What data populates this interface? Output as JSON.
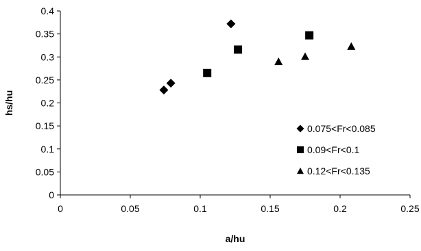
{
  "chart_data": {
    "type": "scatter",
    "title": "",
    "xlabel": "a/hu",
    "ylabel": "hs/hu",
    "xlim": [
      0,
      0.25
    ],
    "ylim": [
      0,
      0.4
    ],
    "x_ticks": [
      0,
      0.05,
      0.1,
      0.15,
      0.2,
      0.25
    ],
    "x_tick_labels": [
      "0",
      "0.05",
      "0.1",
      "0.15",
      "0.2",
      "0.25"
    ],
    "y_ticks": [
      0,
      0.05,
      0.1,
      0.15,
      0.2,
      0.25,
      0.3,
      0.35,
      0.4
    ],
    "y_tick_labels": [
      "0",
      "0.05",
      "0.1",
      "0.15",
      "0.2",
      "0.25",
      "0.3",
      "0.35",
      "0.4"
    ],
    "grid": false,
    "legend_position": "bottom-right",
    "series": [
      {
        "name": "0.075<Fr<0.085",
        "marker": "diamond",
        "color": "#000000",
        "points": [
          {
            "x": 0.074,
            "y": 0.228
          },
          {
            "x": 0.079,
            "y": 0.243
          },
          {
            "x": 0.122,
            "y": 0.372
          }
        ]
      },
      {
        "name": "0.09<Fr<0.1",
        "marker": "square",
        "color": "#000000",
        "points": [
          {
            "x": 0.105,
            "y": 0.265
          },
          {
            "x": 0.127,
            "y": 0.316
          },
          {
            "x": 0.178,
            "y": 0.347
          }
        ]
      },
      {
        "name": "0.12<Fr<0.135",
        "marker": "triangle",
        "color": "#000000",
        "points": [
          {
            "x": 0.156,
            "y": 0.29
          },
          {
            "x": 0.175,
            "y": 0.301
          },
          {
            "x": 0.208,
            "y": 0.323
          }
        ]
      }
    ]
  }
}
